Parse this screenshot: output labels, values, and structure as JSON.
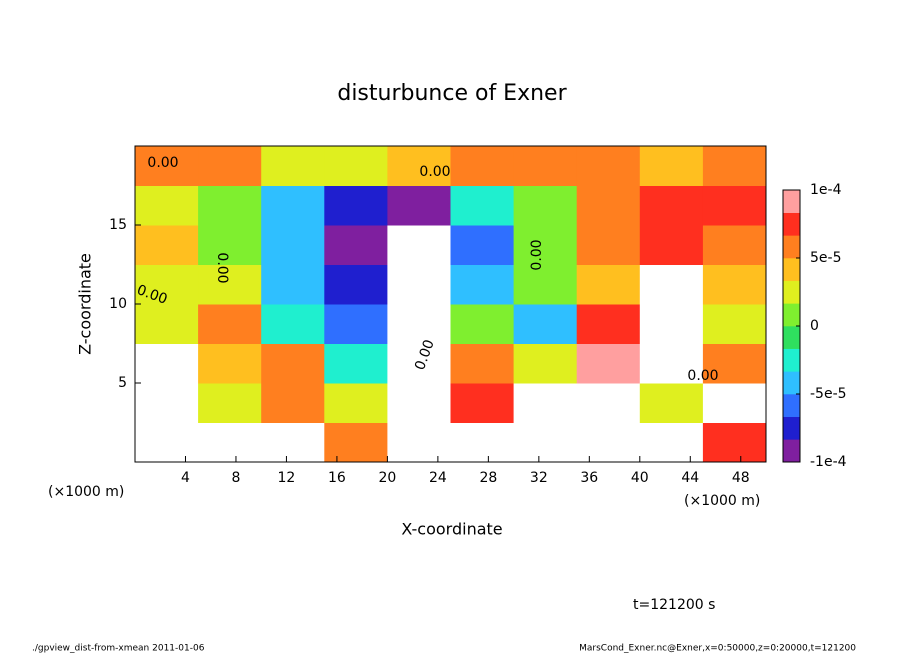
{
  "chart_data": {
    "type": "heatmap",
    "title": "disturbunce of Exner",
    "x_label": "X-coordinate",
    "y_label": "Z-coordinate",
    "x_unit": "(×1000 m)",
    "y_unit": "(×1000 m)",
    "time_label": "t=121200 s",
    "footer_left": "./gpview_dist-from-xmean  2011-01-06",
    "footer_right": "MarsCond_Exner.nc@Exner,x=0:50000,z=0:20000,t=121200",
    "contour_labels": [
      "0.00",
      "0.00",
      "0.00",
      "0.00",
      "0.00",
      "0.00",
      "0.00"
    ],
    "xlim": [
      0,
      50
    ],
    "ylim": [
      0,
      20
    ],
    "xticks": [
      4,
      8,
      12,
      16,
      20,
      24,
      28,
      32,
      36,
      40,
      44,
      48
    ],
    "yticks": [
      5,
      10,
      15
    ],
    "x": [
      2.5,
      7.5,
      12.5,
      17.5,
      22.5,
      27.5,
      32.5,
      37.5,
      42.5,
      47.5
    ],
    "y": [
      1.25,
      3.75,
      6.25,
      8.75,
      11.25,
      13.75,
      16.25,
      18.75
    ],
    "z": [
      [
        -0.0002,
        -0.0002,
        -0.0002,
        5e-05,
        0.0002,
        -0.0002,
        -0.0002,
        -0.0002,
        -0.0002,
        7e-05
      ],
      [
        -0.0002,
        2e-05,
        6e-05,
        3e-05,
        0.0002,
        8e-05,
        -0.0002,
        0.0002,
        3e-05,
        -0.0002
      ],
      [
        -0.0002,
        4e-05,
        5e-05,
        -3e-05,
        0.0002,
        6e-05,
        3e-05,
        9e-05,
        0.0002,
        5e-05
      ],
      [
        2e-05,
        5e-05,
        -2e-05,
        -6e-05,
        0.0002,
        1e-05,
        -4e-05,
        8e-05,
        0.0002,
        3e-05
      ],
      [
        3e-05,
        2e-05,
        -4e-05,
        -8e-05,
        0.0002,
        -5e-05,
        0,
        4e-05,
        0.0002,
        4e-05
      ],
      [
        4e-05,
        0,
        -5e-05,
        -9e-05,
        -0.0002,
        -6e-05,
        0,
        6e-05,
        8e-05,
        6e-05
      ],
      [
        3e-05,
        1e-05,
        -4e-05,
        -7e-05,
        -9e-05,
        -3e-05,
        1e-05,
        5e-05,
        7e-05,
        7e-05
      ],
      [
        5e-05,
        6e-05,
        3e-05,
        2e-05,
        4e-05,
        5e-05,
        6e-05,
        5e-05,
        4e-05,
        5e-05
      ]
    ],
    "zlim": [
      -0.0001,
      0.0001
    ],
    "zticks": [
      {
        "value": 0.0001,
        "label": "1e-4"
      },
      {
        "value": 5e-05,
        "label": "5e-5"
      },
      0,
      {
        "value": -5e-05,
        "label": "-5e-5"
      },
      {
        "value": -0.0001,
        "label": "-1e-4"
      }
    ],
    "colorscale": [
      "#7f1f9f",
      "#1f1fcf",
      "#2f6fff",
      "#2fbfff",
      "#1fefcf",
      "#2fdf5f",
      "#7fef2f",
      "#dfef1f",
      "#ffbf1f",
      "#ff7f1f",
      "#ff2f1f",
      "#ff9f9f"
    ],
    "out_of_range_color": "#ffffff"
  }
}
